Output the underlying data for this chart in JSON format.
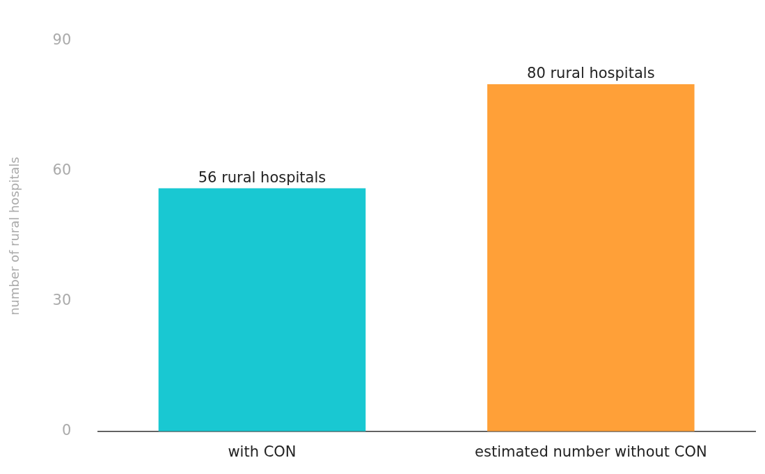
{
  "chart_data": {
    "type": "bar",
    "ylabel": "number of rural hospitals",
    "categories": [
      "with CON",
      "estimated number without CON"
    ],
    "values": [
      56,
      80
    ],
    "colors": [
      "#19c8d2",
      "#ffa038"
    ],
    "value_labels": [
      "56 rural hospitals",
      "80 rural hospitals"
    ],
    "ylim": [
      0,
      90
    ],
    "yticks": [
      0,
      30,
      60,
      90
    ],
    "grid": false,
    "legend": false
  }
}
